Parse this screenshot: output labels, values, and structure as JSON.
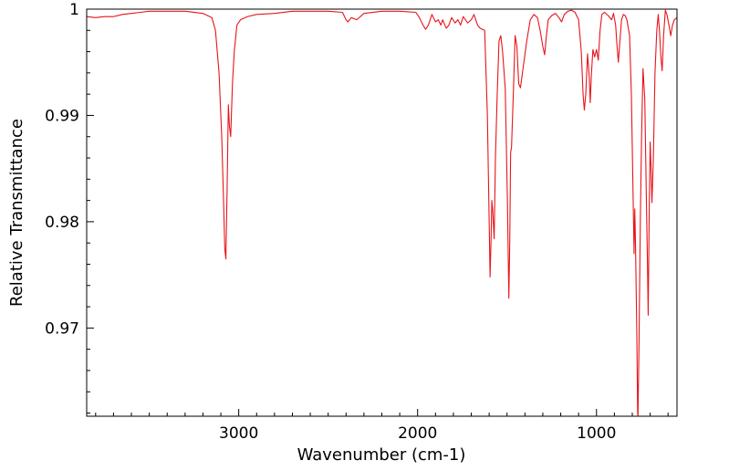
{
  "chart_data": {
    "type": "line",
    "title": "",
    "xlabel": "Wavenumber (cm-1)",
    "ylabel": "Relative Transmittance",
    "xlim": [
      3850,
      550
    ],
    "ylim": [
      0.9617,
      1.0
    ],
    "x_reversed": true,
    "grid": false,
    "legend": "none",
    "line_color": "#e8141b",
    "x_major_ticks": [
      3000,
      2000,
      1000
    ],
    "x_tick_labels": [
      "3000",
      "2000",
      "1000"
    ],
    "y_major_ticks": [
      1.0,
      0.99,
      0.98,
      0.97
    ],
    "y_tick_labels": [
      "1",
      "0.99",
      "0.98",
      "0.97"
    ],
    "series": [
      {
        "name": "",
        "points": [
          [
            3850,
            0.9993
          ],
          [
            3800,
            0.9992
          ],
          [
            3750,
            0.9993
          ],
          [
            3700,
            0.9993
          ],
          [
            3650,
            0.9995
          ],
          [
            3600,
            0.9996
          ],
          [
            3550,
            0.9997
          ],
          [
            3500,
            0.9998
          ],
          [
            3400,
            0.9998
          ],
          [
            3300,
            0.9998
          ],
          [
            3200,
            0.9996
          ],
          [
            3150,
            0.9992
          ],
          [
            3130,
            0.998
          ],
          [
            3110,
            0.994
          ],
          [
            3095,
            0.988
          ],
          [
            3085,
            0.982
          ],
          [
            3078,
            0.9775
          ],
          [
            3072,
            0.9765
          ],
          [
            3065,
            0.983
          ],
          [
            3058,
            0.991
          ],
          [
            3052,
            0.989
          ],
          [
            3045,
            0.988
          ],
          [
            3035,
            0.993
          ],
          [
            3025,
            0.996
          ],
          [
            3010,
            0.9985
          ],
          [
            2990,
            0.999
          ],
          [
            2950,
            0.9993
          ],
          [
            2900,
            0.9995
          ],
          [
            2800,
            0.9996
          ],
          [
            2700,
            0.9998
          ],
          [
            2600,
            0.9998
          ],
          [
            2500,
            0.9998
          ],
          [
            2420,
            0.9997
          ],
          [
            2400,
            0.999
          ],
          [
            2390,
            0.9988
          ],
          [
            2370,
            0.9992
          ],
          [
            2340,
            0.999
          ],
          [
            2300,
            0.9996
          ],
          [
            2200,
            0.9998
          ],
          [
            2100,
            0.9998
          ],
          [
            2010,
            0.9997
          ],
          [
            1990,
            0.9992
          ],
          [
            1970,
            0.9985
          ],
          [
            1955,
            0.9981
          ],
          [
            1940,
            0.9985
          ],
          [
            1920,
            0.9995
          ],
          [
            1900,
            0.9988
          ],
          [
            1885,
            0.999
          ],
          [
            1870,
            0.9985
          ],
          [
            1860,
            0.999
          ],
          [
            1840,
            0.9982
          ],
          [
            1825,
            0.9985
          ],
          [
            1810,
            0.9992
          ],
          [
            1790,
            0.9987
          ],
          [
            1775,
            0.999
          ],
          [
            1760,
            0.9985
          ],
          [
            1745,
            0.9993
          ],
          [
            1720,
            0.9987
          ],
          [
            1700,
            0.999
          ],
          [
            1685,
            0.9995
          ],
          [
            1665,
            0.9985
          ],
          [
            1650,
            0.9982
          ],
          [
            1625,
            0.998
          ],
          [
            1610,
            0.99
          ],
          [
            1600,
            0.98
          ],
          [
            1595,
            0.9748
          ],
          [
            1590,
            0.978
          ],
          [
            1585,
            0.982
          ],
          [
            1580,
            0.981
          ],
          [
            1572,
            0.9784
          ],
          [
            1565,
            0.986
          ],
          [
            1555,
            0.992
          ],
          [
            1545,
            0.997
          ],
          [
            1535,
            0.9975
          ],
          [
            1525,
            0.996
          ],
          [
            1510,
            0.9925
          ],
          [
            1498,
            0.982
          ],
          [
            1490,
            0.9728
          ],
          [
            1485,
            0.978
          ],
          [
            1480,
            0.9865
          ],
          [
            1475,
            0.987
          ],
          [
            1465,
            0.992
          ],
          [
            1455,
            0.9975
          ],
          [
            1445,
            0.9965
          ],
          [
            1435,
            0.993
          ],
          [
            1425,
            0.9926
          ],
          [
            1410,
            0.9945
          ],
          [
            1390,
            0.997
          ],
          [
            1370,
            0.999
          ],
          [
            1350,
            0.9995
          ],
          [
            1330,
            0.9992
          ],
          [
            1315,
            0.998
          ],
          [
            1300,
            0.9965
          ],
          [
            1290,
            0.9957
          ],
          [
            1280,
            0.9975
          ],
          [
            1270,
            0.999
          ],
          [
            1250,
            0.9994
          ],
          [
            1230,
            0.9996
          ],
          [
            1210,
            0.9992
          ],
          [
            1195,
            0.9988
          ],
          [
            1180,
            0.9995
          ],
          [
            1160,
            0.9998
          ],
          [
            1140,
            0.9999
          ],
          [
            1120,
            0.9997
          ],
          [
            1100,
            0.999
          ],
          [
            1085,
            0.996
          ],
          [
            1075,
            0.992
          ],
          [
            1068,
            0.9905
          ],
          [
            1060,
            0.992
          ],
          [
            1050,
            0.9958
          ],
          [
            1040,
            0.9935
          ],
          [
            1035,
            0.9912
          ],
          [
            1028,
            0.994
          ],
          [
            1020,
            0.9962
          ],
          [
            1010,
            0.9955
          ],
          [
            1000,
            0.9962
          ],
          [
            990,
            0.9952
          ],
          [
            980,
            0.998
          ],
          [
            970,
            0.9995
          ],
          [
            955,
            0.9997
          ],
          [
            935,
            0.9994
          ],
          [
            915,
            0.999
          ],
          [
            905,
            0.9996
          ],
          [
            893,
            0.9985
          ],
          [
            885,
            0.9965
          ],
          [
            878,
            0.995
          ],
          [
            870,
            0.9968
          ],
          [
            860,
            0.999
          ],
          [
            850,
            0.9995
          ],
          [
            840,
            0.9994
          ],
          [
            830,
            0.999
          ],
          [
            815,
            0.9975
          ],
          [
            805,
            0.992
          ],
          [
            795,
            0.982
          ],
          [
            790,
            0.977
          ],
          [
            786,
            0.9812
          ],
          [
            782,
            0.978
          ],
          [
            775,
            0.97
          ],
          [
            770,
            0.962
          ],
          [
            768,
            0.9617
          ],
          [
            762,
            0.969
          ],
          [
            755,
            0.98
          ],
          [
            748,
            0.988
          ],
          [
            740,
            0.9944
          ],
          [
            730,
            0.9915
          ],
          [
            722,
            0.983
          ],
          [
            715,
            0.976
          ],
          [
            711,
            0.9712
          ],
          [
            706,
            0.98
          ],
          [
            700,
            0.9875
          ],
          [
            695,
            0.985
          ],
          [
            690,
            0.9818
          ],
          [
            682,
            0.986
          ],
          [
            673,
            0.994
          ],
          [
            663,
            0.998
          ],
          [
            655,
            0.9995
          ],
          [
            648,
            0.998
          ],
          [
            640,
            0.9955
          ],
          [
            633,
            0.9942
          ],
          [
            625,
            0.9975
          ],
          [
            615,
            0.9999
          ],
          [
            605,
            0.9994
          ],
          [
            595,
            0.9985
          ],
          [
            585,
            0.9975
          ],
          [
            575,
            0.9985
          ],
          [
            565,
            0.999
          ],
          [
            550,
            0.9992
          ]
        ]
      }
    ]
  }
}
